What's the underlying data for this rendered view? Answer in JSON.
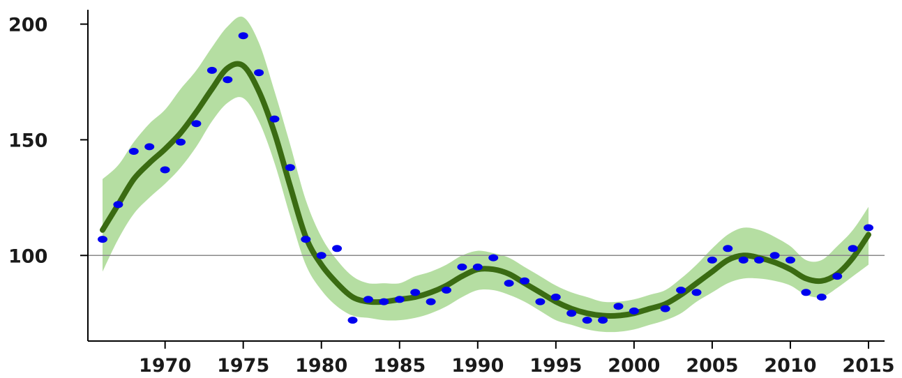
{
  "chart_data": {
    "type": "line",
    "title": "",
    "xlabel": "",
    "ylabel": "",
    "xlim": [
      1966,
      2015
    ],
    "ylim": [
      63,
      205
    ],
    "x_ticks": [
      1970,
      1975,
      1980,
      1985,
      1990,
      1995,
      2000,
      2005,
      2010,
      2015
    ],
    "x_tick_labels": [
      "1970",
      "1975",
      "1980",
      "1985",
      "1990",
      "1995",
      "2000",
      "2005",
      "2010",
      "2015"
    ],
    "y_ticks": [
      100,
      150,
      200
    ],
    "y_tick_labels": [
      "100",
      "150",
      "200"
    ],
    "reference_line": 100,
    "grid": false,
    "legend": "none",
    "colors": {
      "points": "#0000ee",
      "trend": "#3a6b12",
      "band": "#b5dea2",
      "reference": "#888888",
      "axis": "#000000"
    },
    "points": {
      "x": [
        1966,
        1967,
        1968,
        1969,
        1970,
        1971,
        1972,
        1973,
        1974,
        1975,
        1976,
        1977,
        1978,
        1979,
        1980,
        1981,
        1982,
        1983,
        1984,
        1985,
        1986,
        1987,
        1988,
        1989,
        1990,
        1991,
        1992,
        1993,
        1994,
        1995,
        1996,
        1997,
        1998,
        1999,
        2000,
        2002,
        2003,
        2004,
        2005,
        2006,
        2007,
        2008,
        2009,
        2010,
        2011,
        2012,
        2013,
        2014,
        2015
      ],
      "y": [
        107,
        122,
        145,
        147,
        137,
        149,
        157,
        180,
        176,
        195,
        179,
        159,
        138,
        107,
        100,
        103,
        72,
        81,
        80,
        81,
        84,
        80,
        85,
        95,
        95,
        99,
        88,
        89,
        80,
        82,
        75,
        72,
        72,
        78,
        76,
        77,
        85,
        84,
        98,
        103,
        98,
        98,
        100,
        98,
        84,
        82,
        91,
        103,
        112
      ]
    },
    "trend": {
      "x": [
        1966,
        1967,
        1968,
        1969,
        1970,
        1971,
        1972,
        1973,
        1974,
        1975,
        1976,
        1977,
        1978,
        1979,
        1980,
        1981,
        1982,
        1983,
        1984,
        1985,
        1986,
        1987,
        1988,
        1989,
        1990,
        1991,
        1992,
        1993,
        1994,
        1995,
        1996,
        1997,
        1998,
        1999,
        2000,
        2001,
        2002,
        2003,
        2004,
        2005,
        2006,
        2007,
        2008,
        2009,
        2010,
        2011,
        2012,
        2013,
        2014,
        2015
      ],
      "y": [
        111,
        122,
        133,
        140,
        146,
        153,
        162,
        172,
        181,
        182,
        171,
        153,
        130,
        108,
        96,
        88,
        82,
        80,
        80,
        81,
        82,
        84,
        87,
        91,
        94,
        94,
        92,
        88,
        84,
        80,
        77,
        75,
        74,
        74,
        75,
        77,
        79,
        83,
        88,
        93,
        98,
        100,
        99,
        97,
        94,
        90,
        89,
        92,
        99,
        109
      ],
      "lower": [
        93,
        107,
        118,
        125,
        131,
        138,
        147,
        158,
        166,
        168,
        158,
        140,
        117,
        96,
        85,
        78,
        74,
        73,
        72,
        72,
        73,
        75,
        78,
        82,
        85,
        85,
        83,
        80,
        76,
        72,
        70,
        68,
        67,
        67,
        68,
        70,
        72,
        75,
        80,
        84,
        88,
        90,
        90,
        89,
        87,
        83,
        82,
        86,
        91,
        96
      ],
      "upper": [
        133,
        139,
        149,
        157,
        163,
        172,
        180,
        190,
        199,
        203,
        192,
        171,
        148,
        124,
        108,
        98,
        91,
        88,
        88,
        88,
        91,
        93,
        96,
        100,
        102,
        101,
        99,
        95,
        91,
        87,
        84,
        82,
        80,
        80,
        81,
        83,
        85,
        90,
        96,
        103,
        109,
        112,
        111,
        108,
        104,
        98,
        98,
        104,
        111,
        121
      ]
    }
  }
}
